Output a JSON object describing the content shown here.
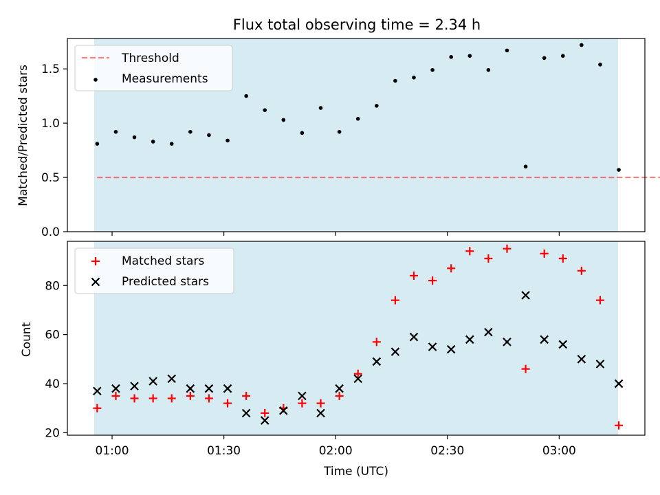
{
  "title": "Flux total observing time = 2.34 h",
  "colors": {
    "shade": "#add8e6",
    "threshold": "#ff0000",
    "measurement": "#000000",
    "matched": "#ff0000",
    "predicted": "#000000"
  },
  "chart_data": [
    {
      "type": "scatter",
      "ylabel": "Matched/Predicted stars",
      "xlabel": "",
      "ylim": [
        0.0,
        1.78
      ],
      "yticks": [
        "0.0",
        "0.5",
        "1.0",
        "1.5"
      ],
      "grid": false,
      "legend": {
        "position": "top-left",
        "entries": [
          "Threshold",
          "Measurements"
        ]
      },
      "threshold": {
        "name": "Threshold",
        "value": 0.5,
        "x_start": "00:56",
        "x_end": "03:36"
      },
      "series": [
        {
          "name": "Measurements",
          "points": [
            [
              "00:56",
              0.81
            ],
            [
              "01:01",
              0.92
            ],
            [
              "01:06",
              0.87
            ],
            [
              "01:11",
              0.83
            ],
            [
              "01:16",
              0.81
            ],
            [
              "01:21",
              0.92
            ],
            [
              "01:26",
              0.89
            ],
            [
              "01:31",
              0.84
            ],
            [
              "01:36",
              1.25
            ],
            [
              "01:41",
              1.12
            ],
            [
              "01:46",
              1.03
            ],
            [
              "01:51",
              0.91
            ],
            [
              "01:56",
              1.14
            ],
            [
              "02:01",
              0.92
            ],
            [
              "02:06",
              1.04
            ],
            [
              "02:11",
              1.16
            ],
            [
              "02:16",
              1.39
            ],
            [
              "02:21",
              1.42
            ],
            [
              "02:26",
              1.49
            ],
            [
              "02:31",
              1.61
            ],
            [
              "02:36",
              1.62
            ],
            [
              "02:41",
              1.49
            ],
            [
              "02:46",
              1.67
            ],
            [
              "02:51",
              0.6
            ],
            [
              "02:56",
              1.6
            ],
            [
              "03:01",
              1.62
            ],
            [
              "03:06",
              1.72
            ],
            [
              "03:11",
              1.54
            ],
            [
              "03:16",
              0.57
            ]
          ]
        }
      ]
    },
    {
      "type": "scatter",
      "ylabel": "Count",
      "xlabel": "Time (UTC)",
      "ylim": [
        19,
        98
      ],
      "yticks": [
        "20",
        "40",
        "60",
        "80"
      ],
      "xlim": [
        "00:48",
        "03:23"
      ],
      "xticks": [
        "01:00",
        "01:30",
        "02:00",
        "02:30",
        "03:00"
      ],
      "grid": false,
      "legend": {
        "position": "top-left",
        "entries": [
          "Matched stars",
          "Predicted stars"
        ]
      },
      "x": [
        "00:56",
        "01:01",
        "01:06",
        "01:11",
        "01:16",
        "01:21",
        "01:26",
        "01:31",
        "01:36",
        "01:41",
        "01:46",
        "01:51",
        "01:56",
        "02:01",
        "02:06",
        "02:11",
        "02:16",
        "02:21",
        "02:26",
        "02:31",
        "02:36",
        "02:41",
        "02:46",
        "02:51",
        "02:56",
        "03:01",
        "03:06",
        "03:11",
        "03:16"
      ],
      "series": [
        {
          "name": "Matched stars",
          "values": [
            30,
            35,
            34,
            34,
            34,
            35,
            34,
            32,
            35,
            28,
            30,
            32,
            32,
            35,
            44,
            57,
            74,
            84,
            82,
            87,
            94,
            91,
            95,
            46,
            93,
            91,
            86,
            74,
            23
          ]
        },
        {
          "name": "Predicted stars",
          "values": [
            37,
            38,
            39,
            41,
            42,
            38,
            38,
            38,
            28,
            25,
            29,
            35,
            28,
            38,
            42,
            49,
            53,
            59,
            55,
            54,
            58,
            61,
            57,
            76,
            58,
            56,
            50,
            48,
            40
          ]
        }
      ]
    }
  ]
}
